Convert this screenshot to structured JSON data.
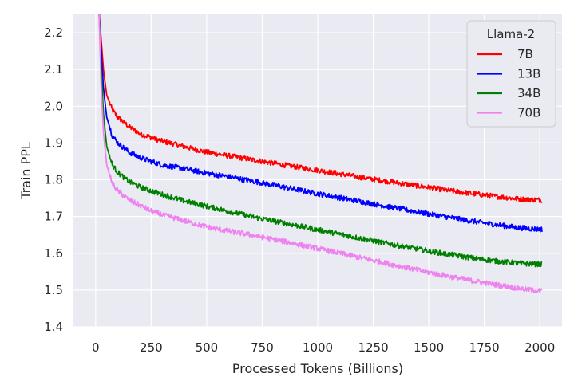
{
  "chart_data": {
    "type": "line",
    "title": "",
    "xlabel": "Processed Tokens (Billions)",
    "ylabel": "Train PPL",
    "xlim": [
      -100,
      2100
    ],
    "ylim": [
      1.4,
      2.25
    ],
    "xticks": [
      0,
      250,
      500,
      750,
      1000,
      1250,
      1500,
      1750,
      2000
    ],
    "yticks": [
      1.4,
      1.5,
      1.6,
      1.7,
      1.8,
      1.9,
      2.0,
      2.1,
      2.2
    ],
    "ytick_labels": [
      "1.4",
      "1.5",
      "1.6",
      "1.7",
      "1.8",
      "1.9",
      "2.0",
      "2.1",
      "2.2"
    ],
    "grid": true,
    "legend": {
      "title": "Llama-2",
      "position": "top-right"
    },
    "x": [
      15,
      25,
      35,
      50,
      75,
      100,
      150,
      200,
      250,
      300,
      400,
      500,
      600,
      700,
      800,
      900,
      1000,
      1100,
      1200,
      1300,
      1400,
      1500,
      1600,
      1700,
      1800,
      1900,
      2000,
      2010
    ],
    "series": [
      {
        "name": "7B",
        "color": "#ff0000",
        "values": [
          2.26,
          2.18,
          2.1,
          2.03,
          1.99,
          1.97,
          1.945,
          1.925,
          1.915,
          1.905,
          1.89,
          1.875,
          1.865,
          1.855,
          1.845,
          1.835,
          1.826,
          1.816,
          1.806,
          1.797,
          1.788,
          1.779,
          1.77,
          1.762,
          1.755,
          1.748,
          1.745,
          1.745
        ]
      },
      {
        "name": "13B",
        "color": "#0000ff",
        "values": [
          2.26,
          2.15,
          2.05,
          1.97,
          1.92,
          1.9,
          1.875,
          1.86,
          1.85,
          1.84,
          1.83,
          1.818,
          1.808,
          1.797,
          1.786,
          1.774,
          1.762,
          1.751,
          1.74,
          1.729,
          1.718,
          1.707,
          1.697,
          1.687,
          1.678,
          1.67,
          1.665,
          1.665
        ]
      },
      {
        "name": "34B",
        "color": "#008000",
        "values": [
          2.26,
          2.1,
          1.98,
          1.89,
          1.84,
          1.82,
          1.795,
          1.78,
          1.77,
          1.76,
          1.742,
          1.728,
          1.714,
          1.7,
          1.688,
          1.676,
          1.664,
          1.652,
          1.64,
          1.628,
          1.617,
          1.606,
          1.596,
          1.587,
          1.579,
          1.573,
          1.57,
          1.57
        ]
      },
      {
        "name": "70B",
        "color": "#ee82ee",
        "values": [
          2.26,
          2.05,
          1.93,
          1.84,
          1.79,
          1.77,
          1.745,
          1.73,
          1.715,
          1.705,
          1.688,
          1.672,
          1.66,
          1.65,
          1.638,
          1.626,
          1.613,
          1.6,
          1.587,
          1.574,
          1.561,
          1.548,
          1.536,
          1.525,
          1.515,
          1.505,
          1.498,
          1.497
        ]
      }
    ]
  }
}
